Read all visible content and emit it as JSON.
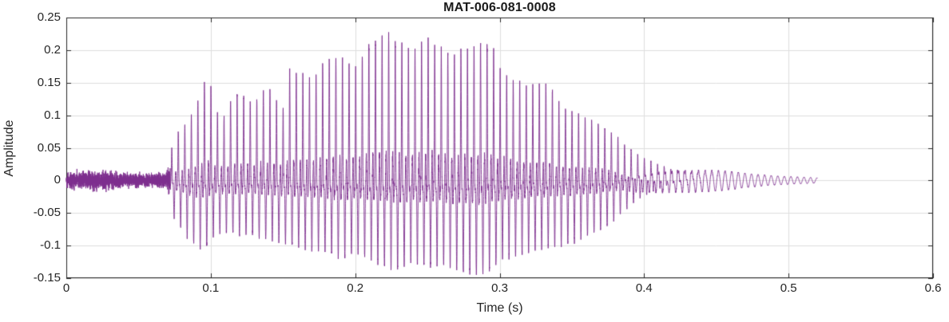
{
  "chart_data": {
    "type": "line",
    "title": "MAT-006-081-0008",
    "xlabel": "Time (s)",
    "ylabel": "Amplitude",
    "xlim": [
      0,
      0.6
    ],
    "ylim": [
      -0.15,
      0.25
    ],
    "xticks": [
      0,
      0.1,
      0.2,
      0.3,
      0.4,
      0.5,
      0.6
    ],
    "xtick_labels": [
      "0",
      "0.1",
      "0.2",
      "0.3",
      "0.4",
      "0.5",
      "0.6"
    ],
    "yticks": [
      -0.15,
      -0.1,
      -0.05,
      0,
      0.05,
      0.1,
      0.15,
      0.2,
      0.25
    ],
    "ytick_labels": [
      "-0.15",
      "-0.1",
      "-0.05",
      "0",
      "0.05",
      "0.1",
      "0.15",
      "0.2",
      "0.25"
    ],
    "grid": true,
    "legend": false,
    "line_color": "#7E2F8E",
    "axis_color": "#262626",
    "grid_color": "#DEDEDE",
    "background": "#FFFFFF",
    "signal": {
      "description": "speech-like waveform: low noise floor 0-0.07s, voiced burst peaking near 0.22-0.29s (max +0.225 / min -0.145), decaying oscillation ending near 0.52s",
      "noise_end": 0.072,
      "voiced_start": 0.073,
      "end": 0.52,
      "f0_hz": 220,
      "t": [
        0.0,
        0.02,
        0.04,
        0.06,
        0.07,
        0.075,
        0.085,
        0.09,
        0.095,
        0.1,
        0.105,
        0.11,
        0.115,
        0.12,
        0.13,
        0.135,
        0.14,
        0.15,
        0.155,
        0.16,
        0.17,
        0.18,
        0.19,
        0.2,
        0.21,
        0.22,
        0.225,
        0.23,
        0.24,
        0.25,
        0.26,
        0.27,
        0.28,
        0.29,
        0.295,
        0.3,
        0.31,
        0.32,
        0.33,
        0.335,
        0.34,
        0.35,
        0.36,
        0.37,
        0.38,
        0.39,
        0.4,
        0.41,
        0.42,
        0.43,
        0.44,
        0.45,
        0.46,
        0.47,
        0.48,
        0.49,
        0.5,
        0.51,
        0.52
      ],
      "upper": [
        0.018,
        0.022,
        0.018,
        0.015,
        0.02,
        0.07,
        0.09,
        0.12,
        0.152,
        0.15,
        0.1,
        0.1,
        0.13,
        0.135,
        0.115,
        0.14,
        0.14,
        0.11,
        0.17,
        0.165,
        0.155,
        0.185,
        0.19,
        0.175,
        0.21,
        0.225,
        0.225,
        0.21,
        0.195,
        0.22,
        0.2,
        0.195,
        0.205,
        0.21,
        0.21,
        0.17,
        0.155,
        0.14,
        0.15,
        0.15,
        0.12,
        0.105,
        0.095,
        0.085,
        0.07,
        0.055,
        0.045,
        0.038,
        0.032,
        0.027,
        0.022,
        0.018,
        0.014,
        0.011,
        0.009,
        0.007,
        0.006,
        0.005,
        0.004
      ],
      "lower": [
        -0.018,
        -0.022,
        -0.018,
        -0.015,
        -0.02,
        -0.06,
        -0.09,
        -0.1,
        -0.105,
        -0.09,
        -0.08,
        -0.08,
        -0.08,
        -0.085,
        -0.08,
        -0.09,
        -0.09,
        -0.095,
        -0.1,
        -0.1,
        -0.105,
        -0.11,
        -0.12,
        -0.11,
        -0.12,
        -0.13,
        -0.135,
        -0.135,
        -0.125,
        -0.13,
        -0.13,
        -0.135,
        -0.145,
        -0.14,
        -0.135,
        -0.12,
        -0.115,
        -0.11,
        -0.105,
        -0.1,
        -0.1,
        -0.095,
        -0.085,
        -0.075,
        -0.06,
        -0.05,
        -0.042,
        -0.036,
        -0.03,
        -0.026,
        -0.022,
        -0.018,
        -0.014,
        -0.011,
        -0.009,
        -0.007,
        -0.006,
        -0.005,
        -0.004
      ]
    }
  }
}
